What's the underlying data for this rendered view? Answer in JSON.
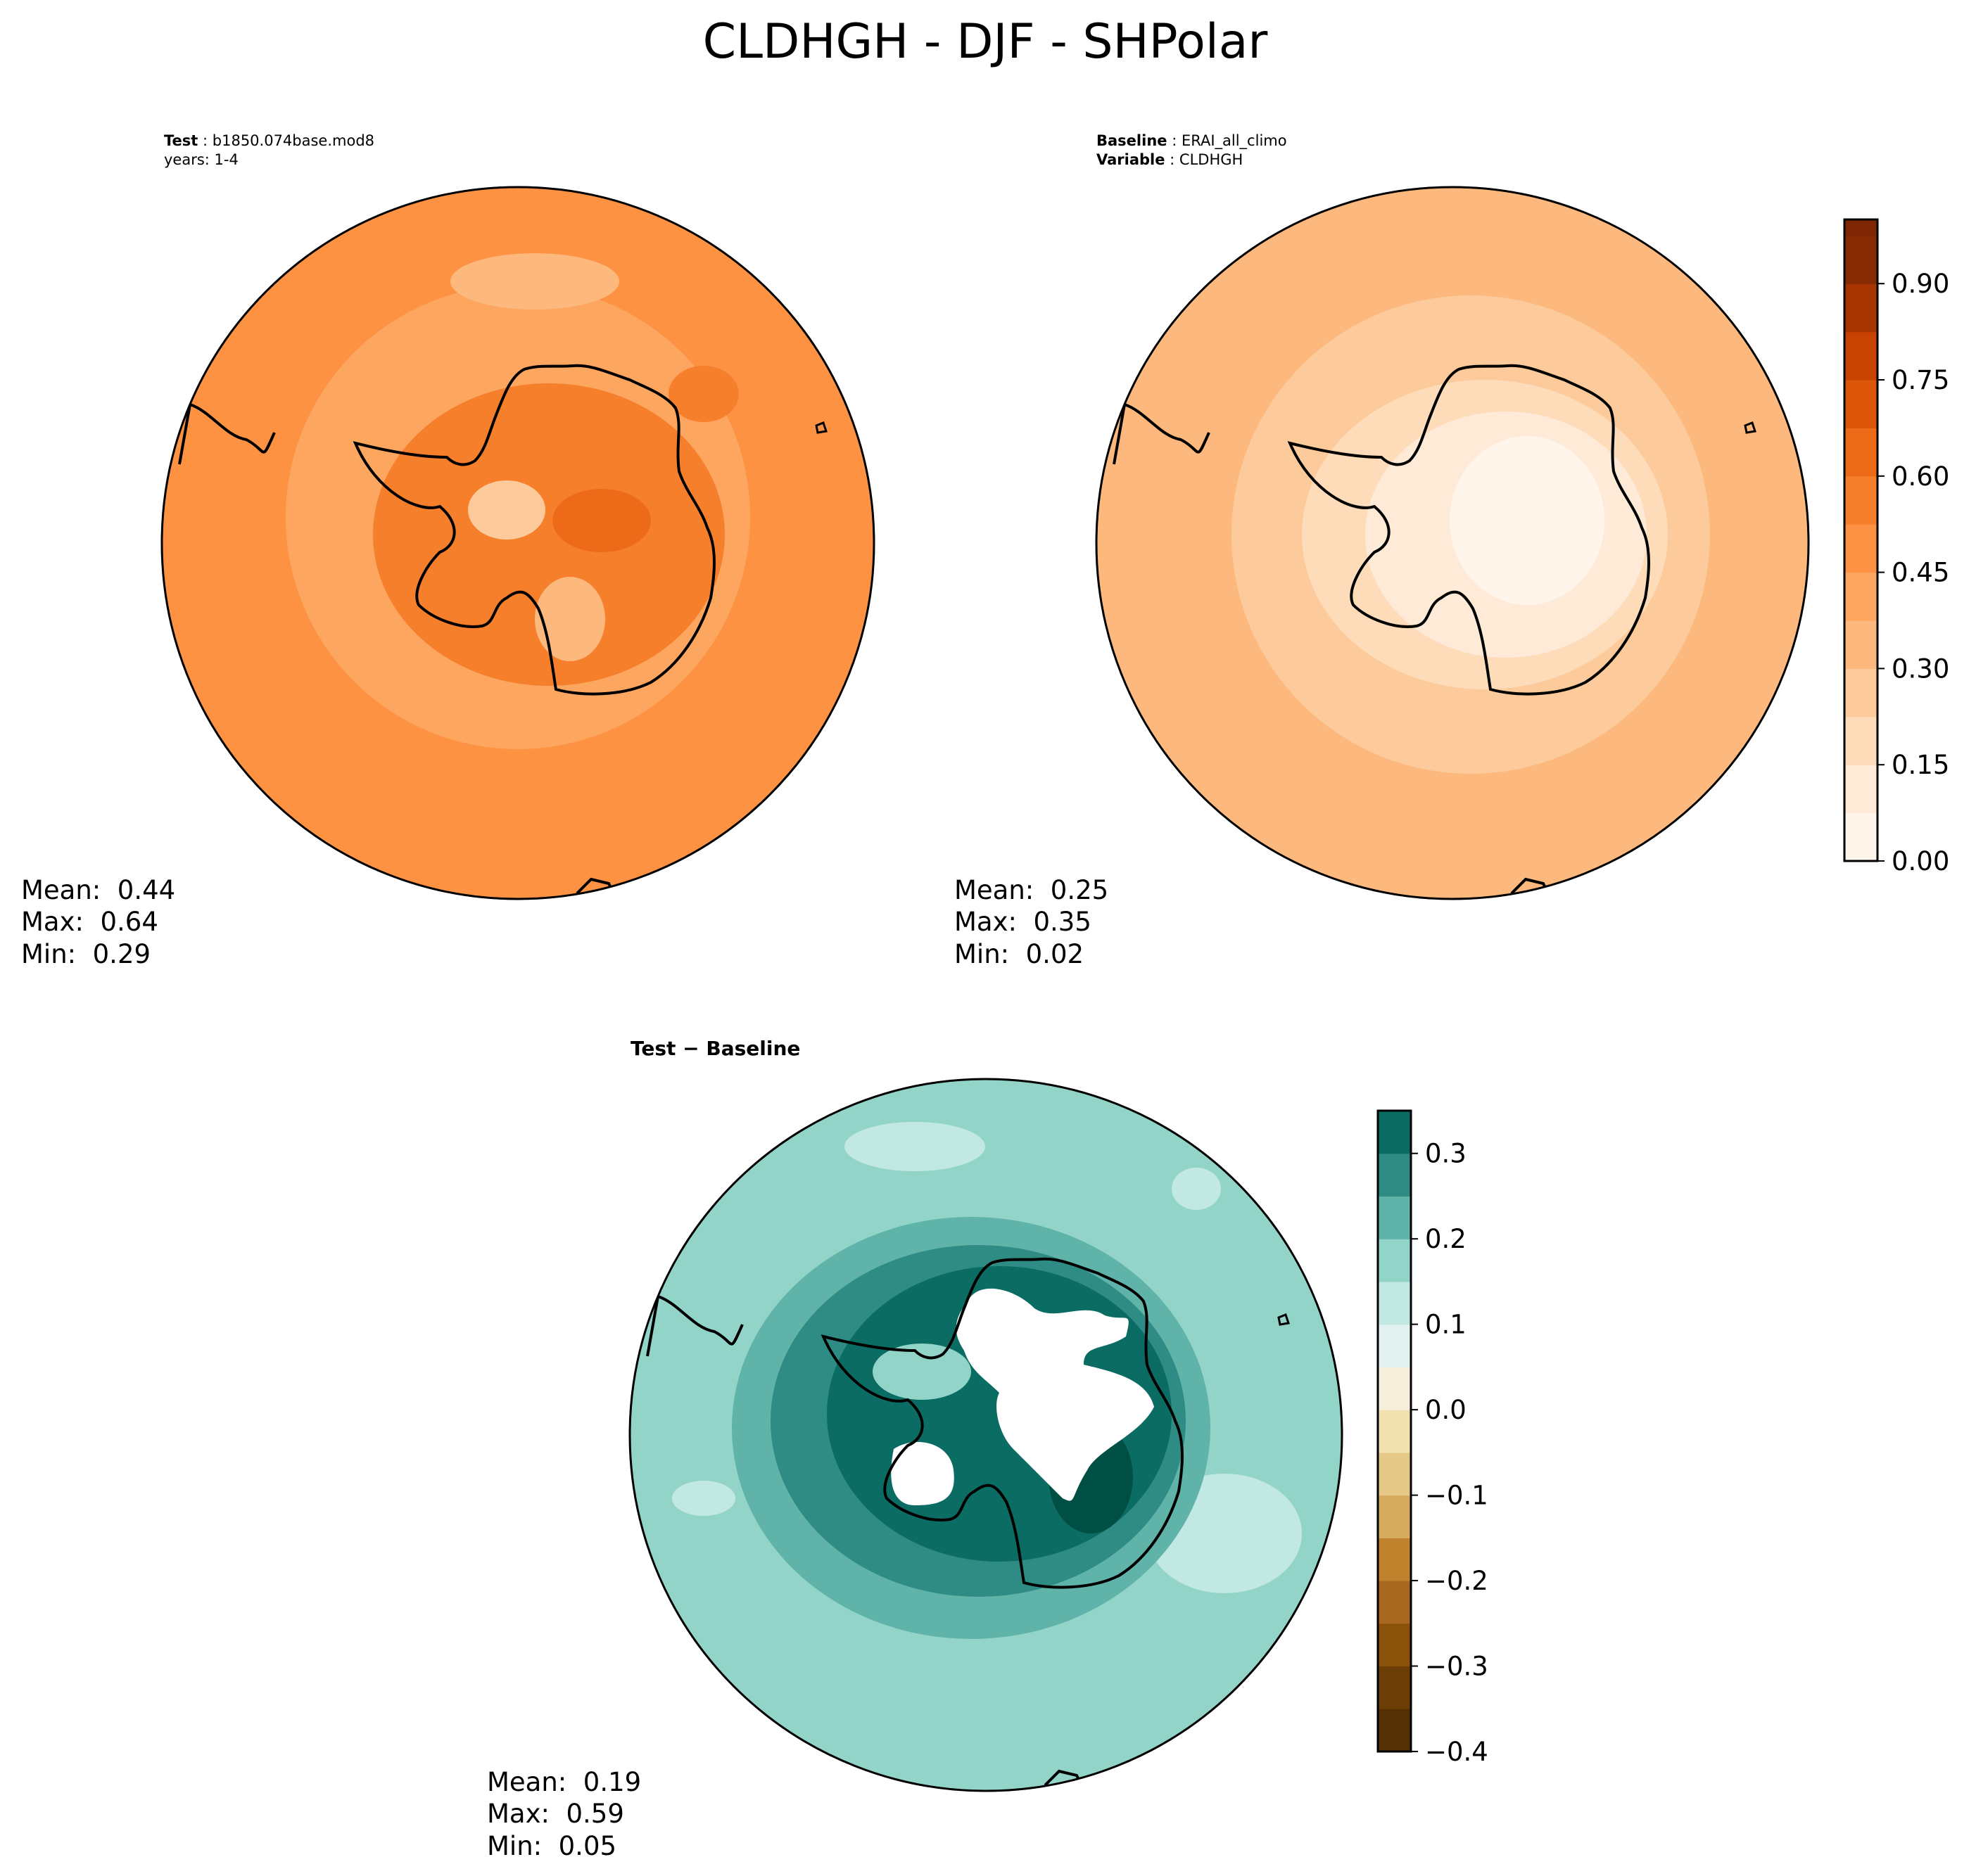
{
  "figure": {
    "title": "CLDHGH - DJF - SHPolar"
  },
  "colors": {
    "orange_ramp": [
      "#fff5eb",
      "#feead6",
      "#fedcba",
      "#fdcb9b",
      "#fdb97d",
      "#fda660",
      "#fd9243",
      "#f67f2c",
      "#ec6a18",
      "#dc560a",
      "#c84202",
      "#a73603",
      "#862b04",
      "#7f2704"
    ],
    "diff_ramp": [
      "#543005",
      "#6b3e07",
      "#8a510b",
      "#a8671f",
      "#bf832e",
      "#d6ab5e",
      "#e6c989",
      "#f1e0b0",
      "#f5eedb",
      "#e3f2f0",
      "#c2e8e3",
      "#93d4c9",
      "#5fb3a8",
      "#2e8c84",
      "#0b6c63",
      "#004f45"
    ],
    "coastline": "#000000"
  },
  "chart_data": [
    {
      "type": "heatmap",
      "panel": "test",
      "projection": "south-polar-stereographic",
      "header_label": "Test",
      "header_value": "b1850.074base.mod8",
      "subheader": "years: 1-4",
      "stats": {
        "mean_label": "Mean:  0.44",
        "max_label": "Max:  0.64",
        "min_label": "Min:  0.29"
      },
      "field_summary": {
        "background": 0.38,
        "ocean_ring": 0.42,
        "continent": 0.5,
        "peak": 0.6,
        "low": 0.3
      }
    },
    {
      "type": "heatmap",
      "panel": "baseline",
      "projection": "south-polar-stereographic",
      "header_label": "Baseline",
      "header_value": "ERAI_all_climo",
      "subheader_label": "Variable",
      "subheader_value": "CLDHGH",
      "stats": {
        "mean_label": "Mean:  0.25",
        "max_label": "Max:  0.35",
        "min_label": "Min:  0.02"
      },
      "field_summary": {
        "background": 0.28,
        "ring": 0.24,
        "continent": 0.08,
        "interior": 0.03
      },
      "colorbar": {
        "levels": [
          0.0,
          0.075,
          0.15,
          0.225,
          0.3,
          0.375,
          0.45,
          0.525,
          0.6,
          0.675,
          0.75,
          0.825,
          0.9,
          0.975,
          1.0
        ],
        "ticks": [
          "0.00",
          "0.15",
          "0.30",
          "0.45",
          "0.60",
          "0.75",
          "0.90"
        ],
        "tick_values": [
          0.0,
          0.15,
          0.3,
          0.45,
          0.6,
          0.75,
          0.9
        ],
        "range": [
          0.0,
          1.0
        ]
      }
    },
    {
      "type": "heatmap",
      "panel": "difference",
      "projection": "south-polar-stereographic",
      "header": "Test − Baseline",
      "stats": {
        "mean_label": "Mean:  0.19",
        "max_label": "Max:  0.59",
        "min_label": "Min:  0.05"
      },
      "field_summary": {
        "outer": 0.12,
        "mid_ring": 0.18,
        "inner_ring": 0.24,
        "coast": 0.3,
        "interior": "above-range"
      },
      "colorbar": {
        "range": [
          -0.4,
          0.35
        ],
        "step": 0.05,
        "ticks": [
          "0.3",
          "0.2",
          "0.1",
          "0.0",
          "−0.1",
          "−0.2",
          "−0.3",
          "−0.4"
        ],
        "tick_values": [
          0.3,
          0.2,
          0.1,
          0.0,
          -0.1,
          -0.2,
          -0.3,
          -0.4
        ]
      }
    }
  ]
}
